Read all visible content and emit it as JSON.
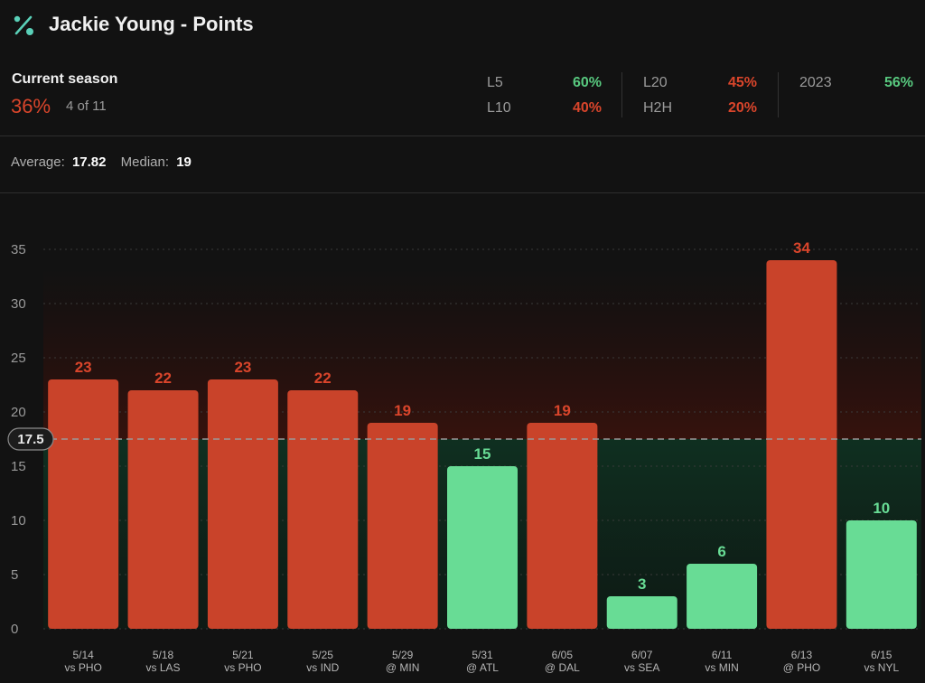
{
  "header": {
    "title": "Jackie Young - Points",
    "logo_icon": "percent-icon"
  },
  "season": {
    "label": "Current season",
    "pct": "36%",
    "count": "4 of 11"
  },
  "splits": [
    {
      "name": "L5",
      "value": "60%",
      "status": "green"
    },
    {
      "name": "L10",
      "value": "40%",
      "status": "red"
    },
    {
      "name": "L20",
      "value": "45%",
      "status": "red"
    },
    {
      "name": "H2H",
      "value": "20%",
      "status": "red"
    },
    {
      "name": "2023",
      "value": "56%",
      "status": "green"
    }
  ],
  "summary": {
    "average_label": "Average:",
    "average": "17.82",
    "median_label": "Median:",
    "median": "19"
  },
  "colors": {
    "over": "#c9432a",
    "under": "#68dc95",
    "over_text": "#d9452b",
    "under_text": "#68dc95"
  },
  "chart_data": {
    "type": "bar",
    "title": "",
    "xlabel": "",
    "ylabel": "",
    "ylim": [
      0,
      35
    ],
    "yticks": [
      0,
      5,
      10,
      15,
      20,
      25,
      30,
      35
    ],
    "line": {
      "label": "17.5",
      "value": 17.5
    },
    "categories": [
      {
        "date": "5/14",
        "opp": "vs PHO"
      },
      {
        "date": "5/18",
        "opp": "vs LAS"
      },
      {
        "date": "5/21",
        "opp": "vs PHO"
      },
      {
        "date": "5/25",
        "opp": "vs IND"
      },
      {
        "date": "5/29",
        "opp": "@ MIN"
      },
      {
        "date": "5/31",
        "opp": "@ ATL"
      },
      {
        "date": "6/05",
        "opp": "@ DAL"
      },
      {
        "date": "6/07",
        "opp": "vs SEA"
      },
      {
        "date": "6/11",
        "opp": "vs MIN"
      },
      {
        "date": "6/13",
        "opp": "@ PHO"
      },
      {
        "date": "6/15",
        "opp": "vs NYL"
      }
    ],
    "values": [
      23,
      22,
      23,
      22,
      19,
      15,
      19,
      3,
      6,
      34,
      10
    ],
    "grid": true,
    "legend": "none"
  }
}
